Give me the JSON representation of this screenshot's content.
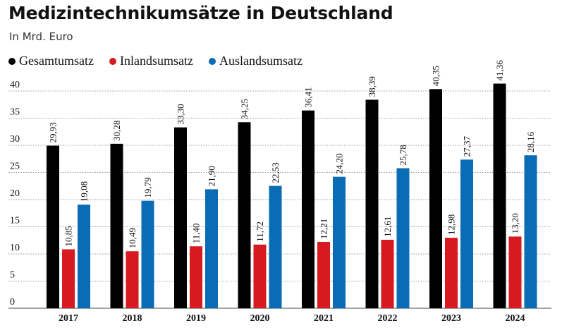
{
  "header": {
    "title": "Medizintechnikumsätze in Deutschland",
    "subtitle": "In Mrd. Euro"
  },
  "legend": [
    {
      "label": "Gesamtumsatz",
      "color": "#000000"
    },
    {
      "label": "Inlandsumsatz",
      "color": "#d71920"
    },
    {
      "label": "Auslandsumsatz",
      "color": "#0a6cb5"
    }
  ],
  "chart_data": {
    "type": "bar",
    "title": "Medizintechnikumsätze in Deutschland",
    "subtitle": "In Mrd. Euro",
    "categories": [
      "2017",
      "2018",
      "2019",
      "2020",
      "2021",
      "2022",
      "2023",
      "2024"
    ],
    "series": [
      {
        "name": "Gesamtumsatz",
        "color": "#000000",
        "values": [
          29.93,
          30.28,
          33.3,
          34.25,
          36.41,
          38.39,
          40.35,
          41.36
        ],
        "labels": [
          "29,93",
          "30,28",
          "33,30",
          "34,25",
          "36,41",
          "38,39",
          "40,35",
          "41,36"
        ]
      },
      {
        "name": "Inlandsumsatz",
        "color": "#d71920",
        "values": [
          10.85,
          10.49,
          11.4,
          11.72,
          12.21,
          12.61,
          12.98,
          13.2
        ],
        "labels": [
          "10,85",
          "10,49",
          "11,40",
          "11,72",
          "12,21",
          "12,61",
          "12,98",
          "13,20"
        ]
      },
      {
        "name": "Auslandsumsatz",
        "color": "#0a6cb5",
        "values": [
          19.08,
          19.79,
          21.9,
          22.53,
          24.2,
          25.78,
          27.37,
          28.16
        ],
        "labels": [
          "19,08",
          "19,79",
          "21,90",
          "22,53",
          "24,20",
          "25,78",
          "27,37",
          "28,16"
        ]
      }
    ],
    "yticks": [
      0,
      5,
      10,
      15,
      20,
      25,
      30,
      35,
      40
    ],
    "ylim": [
      0,
      40
    ],
    "grid": true,
    "legend_position": "top-left"
  }
}
